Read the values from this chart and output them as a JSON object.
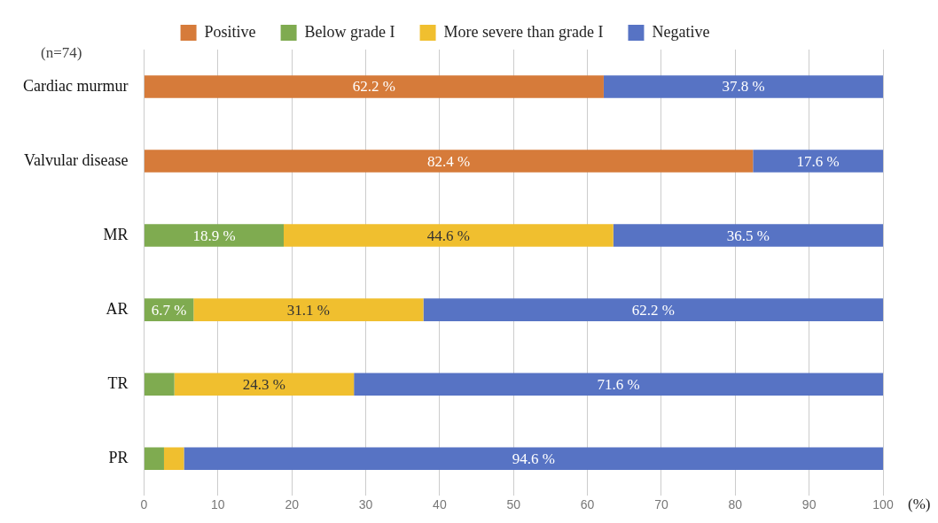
{
  "chart_data": {
    "type": "bar",
    "orientation": "horizontal",
    "stacked": true,
    "categories": [
      "Cardiac murmur",
      "Valvular disease",
      "MR",
      "AR",
      "TR",
      "PR"
    ],
    "series": [
      {
        "name": "Positive",
        "color": "#d67b3a",
        "values": [
          62.2,
          82.4,
          null,
          null,
          null,
          null
        ],
        "value_labels": [
          "62.2 %",
          "82.4 %",
          null,
          null,
          null,
          null
        ]
      },
      {
        "name": "Below grade I",
        "color": "#7fab50",
        "values": [
          null,
          null,
          18.9,
          6.7,
          4.1,
          2.7
        ],
        "value_labels": [
          null,
          null,
          "18.9 %",
          "6.7 %",
          null,
          null
        ]
      },
      {
        "name": "More severe than grade I",
        "color": "#f0bf2f",
        "values": [
          null,
          null,
          44.6,
          31.1,
          24.3,
          2.7
        ],
        "value_labels": [
          null,
          null,
          "44.6 %",
          "31.1 %",
          "24.3 %",
          null
        ]
      },
      {
        "name": "Negative",
        "color": "#5773c4",
        "values": [
          37.8,
          17.6,
          36.5,
          62.2,
          71.6,
          94.6
        ],
        "value_labels": [
          "37.8 %",
          "17.6 %",
          "36.5 %",
          "62.2 %",
          "71.6 %",
          "94.6 %"
        ]
      }
    ],
    "xlim": [
      0,
      100
    ],
    "xticks": [
      0,
      10,
      20,
      30,
      40,
      50,
      60,
      70,
      80,
      90,
      100
    ],
    "xlabel": "(%)",
    "grid": "x",
    "legend": "top",
    "annotations": [
      "(n=74)"
    ]
  }
}
